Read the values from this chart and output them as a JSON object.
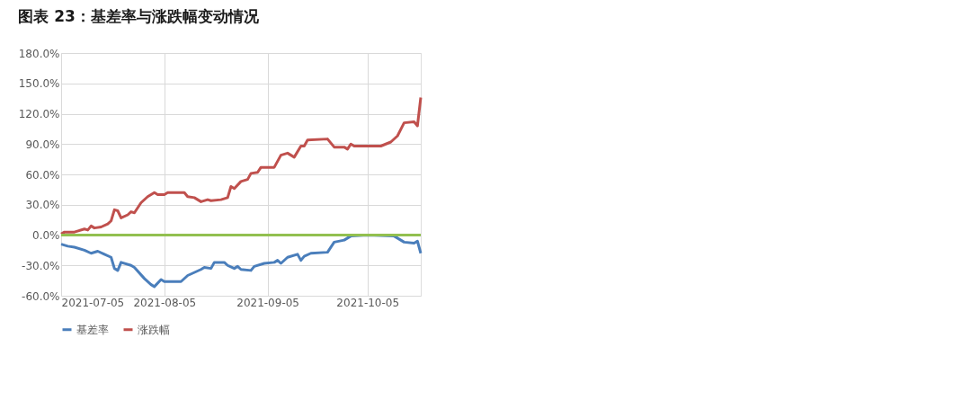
{
  "chart_data": {
    "type": "line",
    "title": "图表 23：基差率与涨跌幅变动情况",
    "xlim": [
      "2021-07-05",
      "2021-10-21"
    ],
    "xticks": [
      "2021-07-05",
      "2021-08-05",
      "2021-09-05",
      "2021-10-05"
    ],
    "ylim": [
      -60,
      180
    ],
    "yticks": [
      {
        "value": -60,
        "label": "-60.0%"
      },
      {
        "value": -30,
        "label": "-30.0%"
      },
      {
        "value": 0,
        "label": "0.0%"
      },
      {
        "value": 30,
        "label": "30.0%"
      },
      {
        "value": 60,
        "label": "60.0%"
      },
      {
        "value": 90,
        "label": "90.0%"
      },
      {
        "value": 120,
        "label": "120.0%"
      },
      {
        "value": 150,
        "label": "150.0%"
      },
      {
        "value": 180,
        "label": "180.0%"
      }
    ],
    "grid": true,
    "legend": "bottom",
    "line_style": "solid",
    "marker": "none",
    "ref_lines": [
      {
        "axis": "y",
        "value": 0,
        "color": "#92c050"
      }
    ],
    "series": [
      {
        "name": "基差率",
        "color": "#4a7ebb",
        "x": [
          "2021-07-05",
          "2021-07-07",
          "2021-07-09",
          "2021-07-12",
          "2021-07-14",
          "2021-07-16",
          "2021-07-18",
          "2021-07-20",
          "2021-07-21",
          "2021-07-22",
          "2021-07-23",
          "2021-07-26",
          "2021-07-27",
          "2021-07-30",
          "2021-08-01",
          "2021-08-02",
          "2021-08-04",
          "2021-08-05",
          "2021-08-10",
          "2021-08-12",
          "2021-08-16",
          "2021-08-17",
          "2021-08-19",
          "2021-08-20",
          "2021-08-23",
          "2021-08-24",
          "2021-08-26",
          "2021-08-27",
          "2021-08-28",
          "2021-08-31",
          "2021-09-01",
          "2021-09-04",
          "2021-09-07",
          "2021-09-08",
          "2021-09-09",
          "2021-09-11",
          "2021-09-14",
          "2021-09-15",
          "2021-09-16",
          "2021-09-18",
          "2021-09-23",
          "2021-09-25",
          "2021-09-28",
          "2021-09-30",
          "2021-10-05",
          "2021-10-13",
          "2021-10-16",
          "2021-10-19",
          "2021-10-20",
          "2021-10-21"
        ],
        "values": [
          -9,
          -11,
          -12,
          -15,
          -18,
          -16,
          -19,
          -22,
          -33,
          -35,
          -27,
          -30,
          -32,
          -43,
          -49,
          -51,
          -44,
          -46,
          -46,
          -40,
          -34,
          -32,
          -33,
          -27,
          -27,
          -30,
          -33,
          -31,
          -34,
          -35,
          -31,
          -28,
          -27,
          -25,
          -28,
          -22,
          -19,
          -25,
          -21,
          -18,
          -17,
          -7,
          -5,
          -1,
          0,
          -1,
          -7,
          -8,
          -6,
          -18
        ]
      },
      {
        "name": "涨跌幅",
        "color": "#c0504d",
        "x": [
          "2021-07-05",
          "2021-07-06",
          "2021-07-09",
          "2021-07-12",
          "2021-07-13",
          "2021-07-14",
          "2021-07-15",
          "2021-07-17",
          "2021-07-19",
          "2021-07-20",
          "2021-07-21",
          "2021-07-22",
          "2021-07-23",
          "2021-07-25",
          "2021-07-26",
          "2021-07-27",
          "2021-07-29",
          "2021-07-31",
          "2021-08-02",
          "2021-08-03",
          "2021-08-05",
          "2021-08-06",
          "2021-08-11",
          "2021-08-12",
          "2021-08-14",
          "2021-08-16",
          "2021-08-18",
          "2021-08-19",
          "2021-08-22",
          "2021-08-24",
          "2021-08-25",
          "2021-08-26",
          "2021-08-28",
          "2021-08-30",
          "2021-08-31",
          "2021-09-02",
          "2021-09-03",
          "2021-09-07",
          "2021-09-09",
          "2021-09-11",
          "2021-09-13",
          "2021-09-15",
          "2021-09-16",
          "2021-09-17",
          "2021-09-23",
          "2021-09-25",
          "2021-09-28",
          "2021-09-29",
          "2021-09-30",
          "2021-10-01",
          "2021-10-09",
          "2021-10-12",
          "2021-10-14",
          "2021-10-16",
          "2021-10-19",
          "2021-10-20",
          "2021-10-21"
        ],
        "values": [
          1,
          3,
          3,
          6,
          5,
          9,
          7,
          8,
          11,
          14,
          25,
          24,
          17,
          20,
          23,
          22,
          32,
          38,
          42,
          40,
          40,
          42,
          42,
          38,
          37,
          33,
          35,
          34,
          35,
          37,
          48,
          46,
          53,
          55,
          61,
          62,
          67,
          67,
          79,
          81,
          77,
          88,
          88,
          94,
          95,
          87,
          87,
          85,
          90,
          88,
          88,
          92,
          98,
          111,
          112,
          108,
          136
        ]
      }
    ]
  }
}
